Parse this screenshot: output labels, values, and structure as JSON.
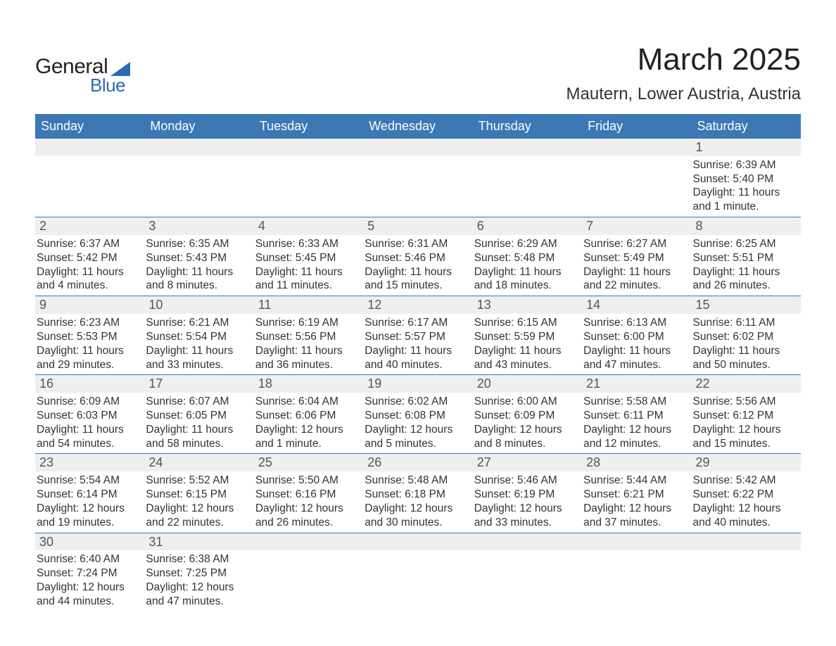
{
  "logo": {
    "line1": "General",
    "line2": "Blue"
  },
  "title": "March 2025",
  "location": "Mautern, Lower Austria, Austria",
  "colors": {
    "header_bg": "#3c78b4",
    "header_text": "#ffffff",
    "daynum_bg": "#efefef",
    "row_border": "#3c78b4",
    "logo_accent": "#2d6bb0"
  },
  "days_of_week": [
    "Sunday",
    "Monday",
    "Tuesday",
    "Wednesday",
    "Thursday",
    "Friday",
    "Saturday"
  ],
  "weeks": [
    [
      {
        "n": "",
        "sr": "",
        "ss": "",
        "dl": ""
      },
      {
        "n": "",
        "sr": "",
        "ss": "",
        "dl": ""
      },
      {
        "n": "",
        "sr": "",
        "ss": "",
        "dl": ""
      },
      {
        "n": "",
        "sr": "",
        "ss": "",
        "dl": ""
      },
      {
        "n": "",
        "sr": "",
        "ss": "",
        "dl": ""
      },
      {
        "n": "",
        "sr": "",
        "ss": "",
        "dl": ""
      },
      {
        "n": "1",
        "sr": "Sunrise: 6:39 AM",
        "ss": "Sunset: 5:40 PM",
        "dl": "Daylight: 11 hours and 1 minute."
      }
    ],
    [
      {
        "n": "2",
        "sr": "Sunrise: 6:37 AM",
        "ss": "Sunset: 5:42 PM",
        "dl": "Daylight: 11 hours and 4 minutes."
      },
      {
        "n": "3",
        "sr": "Sunrise: 6:35 AM",
        "ss": "Sunset: 5:43 PM",
        "dl": "Daylight: 11 hours and 8 minutes."
      },
      {
        "n": "4",
        "sr": "Sunrise: 6:33 AM",
        "ss": "Sunset: 5:45 PM",
        "dl": "Daylight: 11 hours and 11 minutes."
      },
      {
        "n": "5",
        "sr": "Sunrise: 6:31 AM",
        "ss": "Sunset: 5:46 PM",
        "dl": "Daylight: 11 hours and 15 minutes."
      },
      {
        "n": "6",
        "sr": "Sunrise: 6:29 AM",
        "ss": "Sunset: 5:48 PM",
        "dl": "Daylight: 11 hours and 18 minutes."
      },
      {
        "n": "7",
        "sr": "Sunrise: 6:27 AM",
        "ss": "Sunset: 5:49 PM",
        "dl": "Daylight: 11 hours and 22 minutes."
      },
      {
        "n": "8",
        "sr": "Sunrise: 6:25 AM",
        "ss": "Sunset: 5:51 PM",
        "dl": "Daylight: 11 hours and 26 minutes."
      }
    ],
    [
      {
        "n": "9",
        "sr": "Sunrise: 6:23 AM",
        "ss": "Sunset: 5:53 PM",
        "dl": "Daylight: 11 hours and 29 minutes."
      },
      {
        "n": "10",
        "sr": "Sunrise: 6:21 AM",
        "ss": "Sunset: 5:54 PM",
        "dl": "Daylight: 11 hours and 33 minutes."
      },
      {
        "n": "11",
        "sr": "Sunrise: 6:19 AM",
        "ss": "Sunset: 5:56 PM",
        "dl": "Daylight: 11 hours and 36 minutes."
      },
      {
        "n": "12",
        "sr": "Sunrise: 6:17 AM",
        "ss": "Sunset: 5:57 PM",
        "dl": "Daylight: 11 hours and 40 minutes."
      },
      {
        "n": "13",
        "sr": "Sunrise: 6:15 AM",
        "ss": "Sunset: 5:59 PM",
        "dl": "Daylight: 11 hours and 43 minutes."
      },
      {
        "n": "14",
        "sr": "Sunrise: 6:13 AM",
        "ss": "Sunset: 6:00 PM",
        "dl": "Daylight: 11 hours and 47 minutes."
      },
      {
        "n": "15",
        "sr": "Sunrise: 6:11 AM",
        "ss": "Sunset: 6:02 PM",
        "dl": "Daylight: 11 hours and 50 minutes."
      }
    ],
    [
      {
        "n": "16",
        "sr": "Sunrise: 6:09 AM",
        "ss": "Sunset: 6:03 PM",
        "dl": "Daylight: 11 hours and 54 minutes."
      },
      {
        "n": "17",
        "sr": "Sunrise: 6:07 AM",
        "ss": "Sunset: 6:05 PM",
        "dl": "Daylight: 11 hours and 58 minutes."
      },
      {
        "n": "18",
        "sr": "Sunrise: 6:04 AM",
        "ss": "Sunset: 6:06 PM",
        "dl": "Daylight: 12 hours and 1 minute."
      },
      {
        "n": "19",
        "sr": "Sunrise: 6:02 AM",
        "ss": "Sunset: 6:08 PM",
        "dl": "Daylight: 12 hours and 5 minutes."
      },
      {
        "n": "20",
        "sr": "Sunrise: 6:00 AM",
        "ss": "Sunset: 6:09 PM",
        "dl": "Daylight: 12 hours and 8 minutes."
      },
      {
        "n": "21",
        "sr": "Sunrise: 5:58 AM",
        "ss": "Sunset: 6:11 PM",
        "dl": "Daylight: 12 hours and 12 minutes."
      },
      {
        "n": "22",
        "sr": "Sunrise: 5:56 AM",
        "ss": "Sunset: 6:12 PM",
        "dl": "Daylight: 12 hours and 15 minutes."
      }
    ],
    [
      {
        "n": "23",
        "sr": "Sunrise: 5:54 AM",
        "ss": "Sunset: 6:14 PM",
        "dl": "Daylight: 12 hours and 19 minutes."
      },
      {
        "n": "24",
        "sr": "Sunrise: 5:52 AM",
        "ss": "Sunset: 6:15 PM",
        "dl": "Daylight: 12 hours and 22 minutes."
      },
      {
        "n": "25",
        "sr": "Sunrise: 5:50 AM",
        "ss": "Sunset: 6:16 PM",
        "dl": "Daylight: 12 hours and 26 minutes."
      },
      {
        "n": "26",
        "sr": "Sunrise: 5:48 AM",
        "ss": "Sunset: 6:18 PM",
        "dl": "Daylight: 12 hours and 30 minutes."
      },
      {
        "n": "27",
        "sr": "Sunrise: 5:46 AM",
        "ss": "Sunset: 6:19 PM",
        "dl": "Daylight: 12 hours and 33 minutes."
      },
      {
        "n": "28",
        "sr": "Sunrise: 5:44 AM",
        "ss": "Sunset: 6:21 PM",
        "dl": "Daylight: 12 hours and 37 minutes."
      },
      {
        "n": "29",
        "sr": "Sunrise: 5:42 AM",
        "ss": "Sunset: 6:22 PM",
        "dl": "Daylight: 12 hours and 40 minutes."
      }
    ],
    [
      {
        "n": "30",
        "sr": "Sunrise: 6:40 AM",
        "ss": "Sunset: 7:24 PM",
        "dl": "Daylight: 12 hours and 44 minutes."
      },
      {
        "n": "31",
        "sr": "Sunrise: 6:38 AM",
        "ss": "Sunset: 7:25 PM",
        "dl": "Daylight: 12 hours and 47 minutes."
      },
      {
        "n": "",
        "sr": "",
        "ss": "",
        "dl": ""
      },
      {
        "n": "",
        "sr": "",
        "ss": "",
        "dl": ""
      },
      {
        "n": "",
        "sr": "",
        "ss": "",
        "dl": ""
      },
      {
        "n": "",
        "sr": "",
        "ss": "",
        "dl": ""
      },
      {
        "n": "",
        "sr": "",
        "ss": "",
        "dl": ""
      }
    ]
  ]
}
